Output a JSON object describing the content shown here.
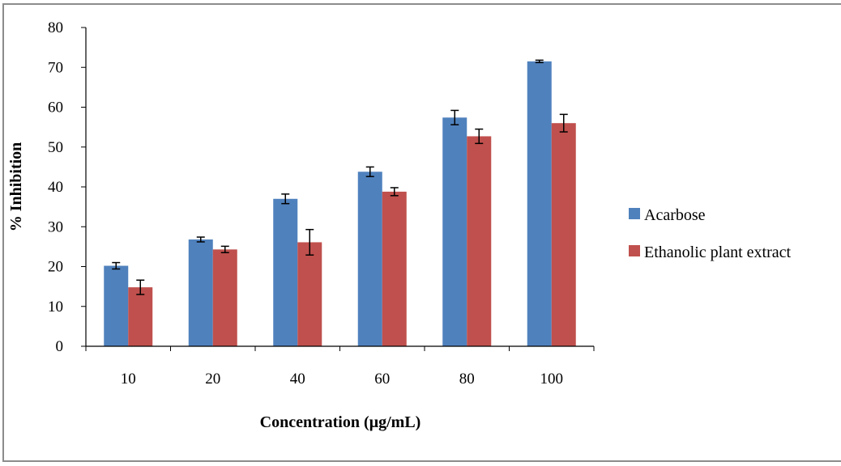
{
  "chart_data": {
    "type": "bar",
    "title": "",
    "xlabel": "Concentration (µg/mL)",
    "ylabel": "% Inhibition",
    "ylim": [
      0,
      80
    ],
    "yticks": [
      0,
      10,
      20,
      30,
      40,
      50,
      60,
      70,
      80
    ],
    "categories": [
      "10",
      "20",
      "40",
      "60",
      "80",
      "100"
    ],
    "series": [
      {
        "name": "Acarbose",
        "color": "#4F81BD",
        "values": [
          20.2,
          26.8,
          37.0,
          43.8,
          57.4,
          71.5
        ],
        "errors": [
          0.8,
          0.6,
          1.2,
          1.2,
          1.8,
          0.3
        ]
      },
      {
        "name": "Ethanolic plant extract",
        "color": "#C0504D",
        "values": [
          14.8,
          24.3,
          26.1,
          38.8,
          52.7,
          56.0
        ],
        "errors": [
          1.8,
          0.8,
          3.2,
          1.0,
          1.8,
          2.2
        ]
      }
    ],
    "legend": "right",
    "grid": false
  }
}
